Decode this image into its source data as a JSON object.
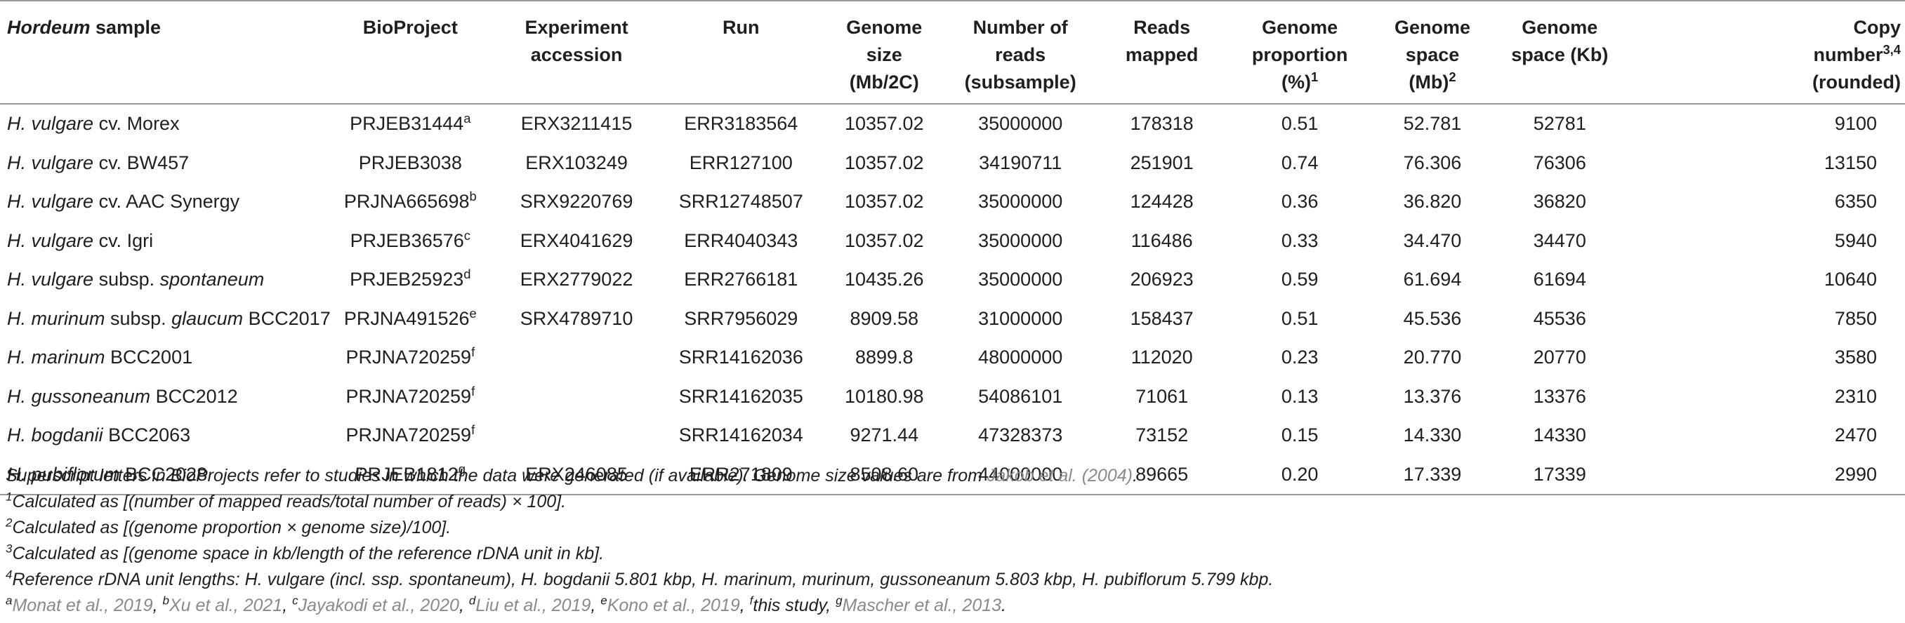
{
  "headers": {
    "sample_genus": "Hordeum",
    "sample_rest": " sample",
    "bioproject": "BioProject",
    "experiment": "Experiment accession",
    "run": "Run",
    "genome_size": [
      "Genome",
      "size",
      "(Mb/2C)"
    ],
    "num_reads": [
      "Number of",
      "reads",
      "(subsample)"
    ],
    "reads_mapped": [
      "Reads",
      "mapped"
    ],
    "proportion": [
      "Genome",
      "proportion",
      "(%)",
      "1"
    ],
    "space_mb": [
      "Genome",
      "space",
      "(Mb)",
      "2"
    ],
    "space_kb": [
      "Genome",
      "space (Kb)"
    ],
    "copy": [
      "Copy",
      "number",
      "3,4",
      "(rounded)"
    ]
  },
  "rows": [
    {
      "species": "H. vulgare",
      "rest": " cv. Morex",
      "rest_ital": "",
      "rest2": "",
      "bioproject": "PRJEB31444",
      "bp_sup": "a",
      "experiment": "ERX3211415",
      "run": "ERR3183564",
      "genome_size": "10357.02",
      "reads": "35000000",
      "mapped": "178318",
      "proportion": "0.51",
      "space_mb": "52.781",
      "space_kb": "52781",
      "copy": "9100"
    },
    {
      "species": "H. vulgare",
      "rest": " cv. BW457",
      "rest_ital": "",
      "rest2": "",
      "bioproject": "PRJEB3038",
      "bp_sup": "",
      "experiment": "ERX103249",
      "run": "ERR127100",
      "genome_size": "10357.02",
      "reads": "34190711",
      "mapped": "251901",
      "proportion": "0.74",
      "space_mb": "76.306",
      "space_kb": "76306",
      "copy": "13150"
    },
    {
      "species": "H. vulgare",
      "rest": " cv. AAC Synergy",
      "rest_ital": "",
      "rest2": "",
      "bioproject": "PRJNA665698",
      "bp_sup": "b",
      "experiment": "SRX9220769",
      "run": "SRR12748507",
      "genome_size": "10357.02",
      "reads": "35000000",
      "mapped": "124428",
      "proportion": "0.36",
      "space_mb": "36.820",
      "space_kb": "36820",
      "copy": "6350"
    },
    {
      "species": "H. vulgare",
      "rest": " cv. Igri",
      "rest_ital": "",
      "rest2": "",
      "bioproject": "PRJEB36576",
      "bp_sup": "c",
      "experiment": "ERX4041629",
      "run": "ERR4040343",
      "genome_size": "10357.02",
      "reads": "35000000",
      "mapped": "116486",
      "proportion": "0.33",
      "space_mb": "34.470",
      "space_kb": "34470",
      "copy": "5940"
    },
    {
      "species": "H. vulgare",
      "rest": " subsp. ",
      "rest_ital": "spontaneum",
      "rest2": "",
      "bioproject": "PRJEB25923",
      "bp_sup": "d",
      "experiment": "ERX2779022",
      "run": "ERR2766181",
      "genome_size": "10435.26",
      "reads": "35000000",
      "mapped": "206923",
      "proportion": "0.59",
      "space_mb": "61.694",
      "space_kb": "61694",
      "copy": "10640"
    },
    {
      "species": "H. murinum",
      "rest": " subsp. ",
      "rest_ital": "glaucum",
      "rest2": " BCC2017",
      "bioproject": "PRJNA491526",
      "bp_sup": "e",
      "experiment": "SRX4789710",
      "run": "SRR7956029",
      "genome_size": "8909.58",
      "reads": "31000000",
      "mapped": "158437",
      "proportion": "0.51",
      "space_mb": "45.536",
      "space_kb": "45536",
      "copy": "7850"
    },
    {
      "species": "H. marinum",
      "rest": " BCC2001",
      "rest_ital": "",
      "rest2": "",
      "bioproject": "PRJNA720259",
      "bp_sup": "f",
      "experiment": "",
      "run": "SRR14162036",
      "genome_size": "8899.8",
      "reads": "48000000",
      "mapped": "112020",
      "proportion": "0.23",
      "space_mb": "20.770",
      "space_kb": "20770",
      "copy": "3580"
    },
    {
      "species": "H. gussoneanum",
      "rest": " BCC2012",
      "rest_ital": "",
      "rest2": "",
      "bioproject": "PRJNA720259",
      "bp_sup": "f",
      "experiment": "",
      "run": "SRR14162035",
      "genome_size": "10180.98",
      "reads": "54086101",
      "mapped": "71061",
      "proportion": "0.13",
      "space_mb": "13.376",
      "space_kb": "13376",
      "copy": "2310"
    },
    {
      "species": "H. bogdanii",
      "rest": " BCC2063",
      "rest_ital": "",
      "rest2": "",
      "bioproject": "PRJNA720259",
      "bp_sup": "f",
      "experiment": "",
      "run": "SRR14162034",
      "genome_size": "9271.44",
      "reads": "47328373",
      "mapped": "73152",
      "proportion": "0.15",
      "space_mb": "14.330",
      "space_kb": "14330",
      "copy": "2470"
    },
    {
      "species": "H. pubiflorum",
      "rest": " BCC2028",
      "rest_ital": "",
      "rest2": "",
      "bioproject": "PRJEB1812",
      "bp_sup": "g",
      "experiment": "ERX246085",
      "run": "ERR271809",
      "genome_size": "8508.60",
      "reads": "44000000",
      "mapped": "89665",
      "proportion": "0.20",
      "space_mb": "17.339",
      "space_kb": "17339",
      "copy": "2990"
    }
  ],
  "notes": {
    "line1_a": "Superscript letters in BioProjects refer to studies in which the data were generated (if available). Genome size values are from ",
    "line1_cite": "Jakob et al. (2004)",
    "line1_b": ".",
    "fn1_sup": "1",
    "fn1": "Calculated as [(number of mapped reads/total number of reads) × 100].",
    "fn2_sup": "2",
    "fn2": "Calculated as [(genome proportion × genome size)/100].",
    "fn3_sup": "3",
    "fn3": "Calculated as [(genome space in kb/length of the reference rDNA unit in kb].",
    "fn4_sup": "4",
    "fn4": "Reference rDNA unit lengths: H. vulgare (incl. ssp. spontaneum), H. bogdanii 5.801 kbp, H. marinum, murinum, gussoneanum 5.803 kbp, H. pubiflorum 5.799 kbp.",
    "refs": [
      {
        "sup": "a",
        "text": "Monat et al., 2019",
        "sep": ", "
      },
      {
        "sup": "b",
        "text": "Xu et al., 2021",
        "sep": ", "
      },
      {
        "sup": "c",
        "text": "Jayakodi et al., 2020",
        "sep": ", "
      },
      {
        "sup": "d",
        "text": "Liu et al., 2019",
        "sep": ", "
      },
      {
        "sup": "e",
        "text": "Kono et al., 2019",
        "sep": ", "
      },
      {
        "sup": "f",
        "text": "this study",
        "sep": ", "
      },
      {
        "sup": "g",
        "text": "Mascher et al., 2013",
        "sep": "."
      }
    ]
  }
}
